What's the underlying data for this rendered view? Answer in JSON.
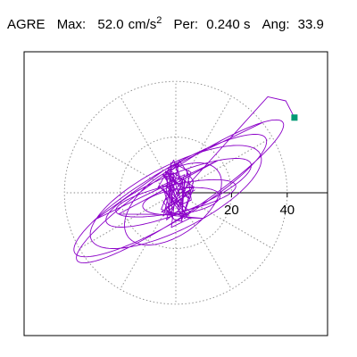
{
  "header": {
    "station": "AGRE",
    "max_label": "Max:",
    "max_value": "52.0",
    "max_unit": "cm/s",
    "max_unit_exp": "2",
    "per_label": "Per:",
    "per_value": "0.240 s",
    "ang_label": "Ang:",
    "ang_value": "33.9"
  },
  "chart_data": {
    "type": "line",
    "title": "AGRE  Max: 52.0 cm/s2  Per: 0.240 s  Ang: 33.9",
    "xlabel": "",
    "ylabel": "",
    "plot_kind": "polar hodogram / particle-motion orbit",
    "xlim": [
      -52,
      52
    ],
    "ylim": [
      -52,
      52
    ],
    "radial_rings": [
      20,
      40
    ],
    "radial_tick_labels": [
      "20",
      "40"
    ],
    "radial_spokes_deg": [
      0,
      30,
      60,
      90,
      120,
      150,
      180,
      210,
      240,
      270,
      300,
      330
    ],
    "grid": true,
    "line_color": "#8b00c8",
    "marker_color": "#009a74",
    "end_marker": {
      "x": 42.6,
      "y": 27.0
    },
    "series": [
      {
        "ellipses": [
          {
            "a": 44.5,
            "b": 8.0,
            "angle_deg": 33.9,
            "cx": 1.5,
            "cy": 0.5,
            "turns": 1.05,
            "phase": 0.2
          },
          {
            "a": 40.0,
            "b": 9.0,
            "angle_deg": 31.0,
            "cx": -2.0,
            "cy": -1.0,
            "turns": 1.0,
            "phase": 1.5
          },
          {
            "a": 34.0,
            "b": 11.5,
            "angle_deg": 27.0,
            "cx": 0.0,
            "cy": -1.5,
            "turns": 1.0,
            "phase": 2.6
          },
          {
            "a": 28.0,
            "b": 7.0,
            "angle_deg": 22.0,
            "cx": 1.0,
            "cy": 0.0,
            "turns": 1.0,
            "phase": 0.9
          },
          {
            "a": 22.0,
            "b": 5.0,
            "angle_deg": 12.0,
            "cx": 0.0,
            "cy": -2.0,
            "turns": 1.0,
            "phase": 3.4
          },
          {
            "a": 14.0,
            "b": 4.5,
            "angle_deg": 8.0,
            "cx": 2.0,
            "cy": -3.0,
            "turns": 1.0,
            "phase": 4.1
          },
          {
            "a": 20.0,
            "b": 11.0,
            "angle_deg": 36.0,
            "cx": -1.0,
            "cy": -4.0,
            "turns": 1.0,
            "phase": 5.0
          }
        ],
        "central_cluster": {
          "count": 70,
          "rx": 5.5,
          "ry": 13.0,
          "center": [
            0.0,
            -1.0
          ],
          "seed": 17
        },
        "tail": [
          {
            "x": 33.0,
            "y": 34.5
          },
          {
            "x": 39.5,
            "y": 33.0
          },
          {
            "x": 42.6,
            "y": 27.0
          }
        ]
      }
    ]
  }
}
